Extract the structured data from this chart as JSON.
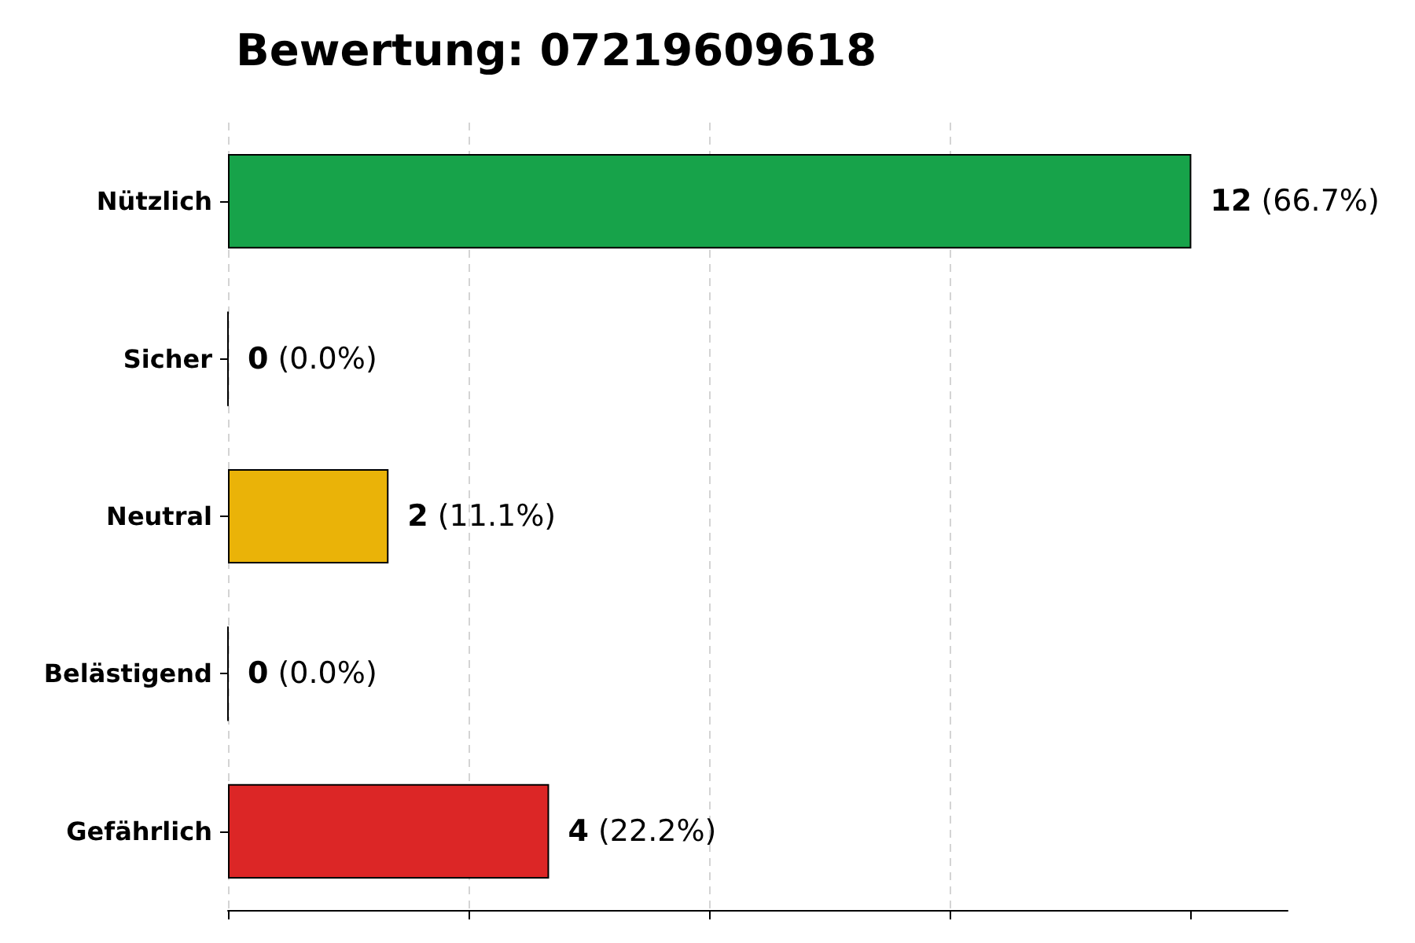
{
  "chart_data": {
    "type": "bar",
    "orientation": "horizontal",
    "title": "Bewertung: 07219609618",
    "categories": [
      "Nützlich",
      "Sicher",
      "Neutral",
      "Belästigend",
      "Gefährlich"
    ],
    "values": [
      12,
      0,
      2,
      0,
      4
    ],
    "colors": [
      "#17a34a",
      "#000000",
      "#eab308",
      "#000000",
      "#dc2626"
    ],
    "value_labels": [
      "12 (66.7%)",
      "0 (0.0%)",
      "2 (11.1%)",
      "0 (0.0%)",
      "4 (22.2%)"
    ],
    "xlim": [
      0,
      13.2
    ],
    "xticks": [
      {
        "value": 0,
        "label": null
      },
      {
        "value": 3,
        "label": null
      },
      {
        "value": 6,
        "label": null
      },
      {
        "value": 9,
        "label": null
      },
      {
        "value": 12,
        "label": null
      }
    ],
    "grid": "x",
    "tick_labels": "y"
  }
}
